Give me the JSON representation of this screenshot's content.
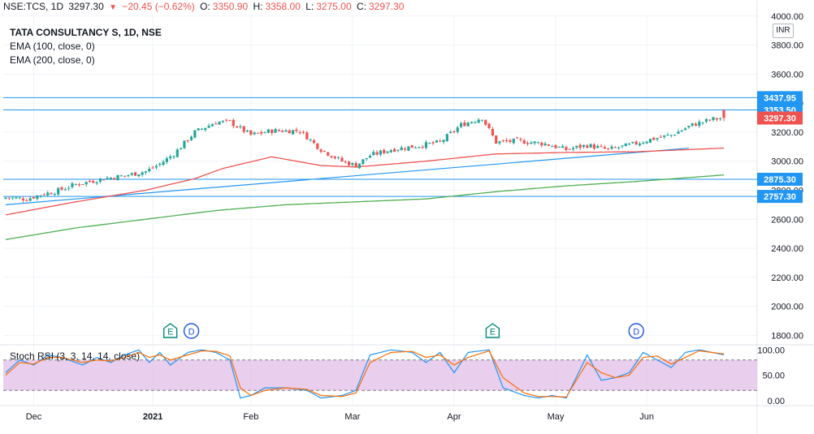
{
  "header": {
    "symbol": "NSE:TCS, 1D",
    "last": "3297.30",
    "change_arrow": "▼",
    "change": "−20.45 (−0.62%)",
    "o_label": "O:",
    "o_value": "3350.90",
    "h_label": "H:",
    "h_value": "3358.00",
    "l_label": "L:",
    "l_value": "3275.00",
    "c_label": "C:",
    "c_value": "3297.30"
  },
  "indicators": {
    "title": "TATA CONSULTANCY S, 1D, NSE",
    "ema100": "EMA (100, close, 0)",
    "ema200": "EMA (200, close, 0)"
  },
  "currency": "INR",
  "stoch_label": "Stoch RSI (3, 3, 14, 14, close)",
  "colors": {
    "up": "#26a69a",
    "down": "#ef5350",
    "ema100": "#ef5350",
    "ema200": "#4caf50",
    "trend": "#2196f3",
    "hline": "#2196f3",
    "stoch_k": "#2196f3",
    "stoch_d": "#ff6d00",
    "stoch_band": "#e1bee7",
    "grid": "#f0f3fa"
  },
  "chart_data": [
    {
      "type": "candlestick",
      "title": "TATA CONSULTANCY S, 1D, NSE",
      "y_ticks": [
        1800,
        2000,
        2200,
        2400,
        2600,
        2800,
        3000,
        3200,
        3400,
        3600,
        3800,
        4000
      ],
      "y_tick_labels": [
        "1800.00",
        "2000.00",
        "2200.00",
        "2400.00",
        "2600.00",
        "2800.00",
        "3000.00",
        "3200.00",
        "3400.00",
        "3600.00",
        "3800.00",
        "4000.00"
      ],
      "ylim": [
        1735,
        4010
      ],
      "x_labels": [
        "Dec",
        "2021",
        "Feb",
        "Mar",
        "Apr",
        "May",
        "Jun"
      ],
      "x_label_index": [
        8,
        42,
        70,
        99,
        128,
        157,
        183
      ],
      "n_candles": 206,
      "close_anchors": [
        [
          0,
          2750
        ],
        [
          6,
          2740
        ],
        [
          10,
          2770
        ],
        [
          14,
          2790
        ],
        [
          20,
          2840
        ],
        [
          24,
          2860
        ],
        [
          28,
          2880
        ],
        [
          34,
          2900
        ],
        [
          40,
          2930
        ],
        [
          44,
          2980
        ],
        [
          48,
          3050
        ],
        [
          54,
          3200
        ],
        [
          60,
          3270
        ],
        [
          64,
          3270
        ],
        [
          70,
          3180
        ],
        [
          76,
          3210
        ],
        [
          84,
          3210
        ],
        [
          90,
          3080
        ],
        [
          96,
          3000
        ],
        [
          100,
          2970
        ],
        [
          104,
          3040
        ],
        [
          110,
          3080
        ],
        [
          116,
          3100
        ],
        [
          124,
          3130
        ],
        [
          130,
          3250
        ],
        [
          136,
          3300
        ],
        [
          140,
          3130
        ],
        [
          146,
          3140
        ],
        [
          154,
          3120
        ],
        [
          160,
          3080
        ],
        [
          166,
          3110
        ],
        [
          172,
          3080
        ],
        [
          178,
          3110
        ],
        [
          184,
          3150
        ],
        [
          190,
          3180
        ],
        [
          196,
          3250
        ],
        [
          202,
          3290
        ],
        [
          205,
          3297.3
        ]
      ],
      "last_candle": {
        "open": 3350.9,
        "high": 3358.0,
        "low": 3275.0,
        "close": 3297.3
      },
      "ema100_anchors": [
        [
          0,
          2630
        ],
        [
          20,
          2720
        ],
        [
          40,
          2800
        ],
        [
          54,
          2880
        ],
        [
          62,
          2950
        ],
        [
          76,
          3030
        ],
        [
          90,
          2970
        ],
        [
          100,
          2960
        ],
        [
          120,
          3000
        ],
        [
          140,
          3050
        ],
        [
          160,
          3060
        ],
        [
          180,
          3065
        ],
        [
          205,
          3090
        ]
      ],
      "ema200_anchors": [
        [
          0,
          2460
        ],
        [
          20,
          2540
        ],
        [
          40,
          2600
        ],
        [
          60,
          2660
        ],
        [
          80,
          2700
        ],
        [
          100,
          2720
        ],
        [
          120,
          2740
        ],
        [
          140,
          2790
        ],
        [
          160,
          2830
        ],
        [
          180,
          2860
        ],
        [
          205,
          2905
        ]
      ],
      "trendline": {
        "from": [
          0,
          2700
        ],
        "to": [
          195,
          3090
        ]
      },
      "horizontal_levels": [
        3437.95,
        3353.5,
        2875.3,
        2757.3
      ],
      "level_labels": [
        "3437.95",
        "3353.50",
        "2875.30",
        "2757.30"
      ],
      "current_price": 3297.3,
      "current_price_label": "3297.30",
      "events": [
        {
          "type": "earnings",
          "glyph": "E",
          "index": 47
        },
        {
          "type": "dividend",
          "glyph": "D",
          "index": 53
        },
        {
          "type": "earnings",
          "glyph": "E",
          "index": 139
        },
        {
          "type": "dividend",
          "glyph": "D",
          "index": 180
        }
      ]
    },
    {
      "type": "line",
      "title": "Stoch RSI (3, 3, 14, 14, close)",
      "ylim": [
        -10,
        110
      ],
      "y_ticks": [
        0,
        50,
        100
      ],
      "y_tick_labels": [
        "0.00",
        "50.00",
        "100.00"
      ],
      "bands": [
        20,
        80
      ],
      "series": [
        {
          "name": "K",
          "anchors": [
            [
              0,
              55
            ],
            [
              4,
              80
            ],
            [
              8,
              70
            ],
            [
              12,
              90
            ],
            [
              16,
              85
            ],
            [
              22,
              70
            ],
            [
              26,
              85
            ],
            [
              30,
              75
            ],
            [
              34,
              90
            ],
            [
              38,
              100
            ],
            [
              41,
              75
            ],
            [
              44,
              95
            ],
            [
              47,
              70
            ],
            [
              52,
              95
            ],
            [
              56,
              100
            ],
            [
              60,
              95
            ],
            [
              64,
              80
            ],
            [
              67,
              5
            ],
            [
              70,
              10
            ],
            [
              74,
              25
            ],
            [
              80,
              25
            ],
            [
              86,
              20
            ],
            [
              90,
              5
            ],
            [
              96,
              10
            ],
            [
              100,
              20
            ],
            [
              104,
              90
            ],
            [
              110,
              100
            ],
            [
              116,
              95
            ],
            [
              120,
              75
            ],
            [
              124,
              95
            ],
            [
              128,
              55
            ],
            [
              132,
              95
            ],
            [
              138,
              100
            ],
            [
              142,
              25
            ],
            [
              148,
              10
            ],
            [
              152,
              5
            ],
            [
              156,
              10
            ],
            [
              160,
              5
            ],
            [
              166,
              90
            ],
            [
              170,
              40
            ],
            [
              174,
              45
            ],
            [
              178,
              55
            ],
            [
              182,
              95
            ],
            [
              186,
              80
            ],
            [
              190,
              65
            ],
            [
              194,
              95
            ],
            [
              198,
              100
            ],
            [
              205,
              90
            ]
          ]
        },
        {
          "name": "D",
          "anchors": [
            [
              0,
              50
            ],
            [
              4,
              75
            ],
            [
              8,
              72
            ],
            [
              12,
              85
            ],
            [
              16,
              85
            ],
            [
              22,
              75
            ],
            [
              26,
              80
            ],
            [
              30,
              78
            ],
            [
              34,
              85
            ],
            [
              38,
              95
            ],
            [
              41,
              85
            ],
            [
              44,
              90
            ],
            [
              47,
              80
            ],
            [
              52,
              90
            ],
            [
              56,
              98
            ],
            [
              60,
              97
            ],
            [
              64,
              88
            ],
            [
              67,
              25
            ],
            [
              70,
              10
            ],
            [
              74,
              20
            ],
            [
              80,
              25
            ],
            [
              86,
              22
            ],
            [
              90,
              10
            ],
            [
              96,
              8
            ],
            [
              100,
              15
            ],
            [
              104,
              75
            ],
            [
              110,
              95
            ],
            [
              116,
              97
            ],
            [
              120,
              85
            ],
            [
              124,
              90
            ],
            [
              128,
              70
            ],
            [
              132,
              85
            ],
            [
              138,
              98
            ],
            [
              142,
              45
            ],
            [
              148,
              15
            ],
            [
              152,
              8
            ],
            [
              156,
              8
            ],
            [
              160,
              7
            ],
            [
              166,
              75
            ],
            [
              170,
              55
            ],
            [
              174,
              45
            ],
            [
              178,
              50
            ],
            [
              182,
              85
            ],
            [
              186,
              88
            ],
            [
              190,
              72
            ],
            [
              194,
              85
            ],
            [
              198,
              98
            ],
            [
              205,
              92
            ]
          ]
        }
      ]
    }
  ]
}
